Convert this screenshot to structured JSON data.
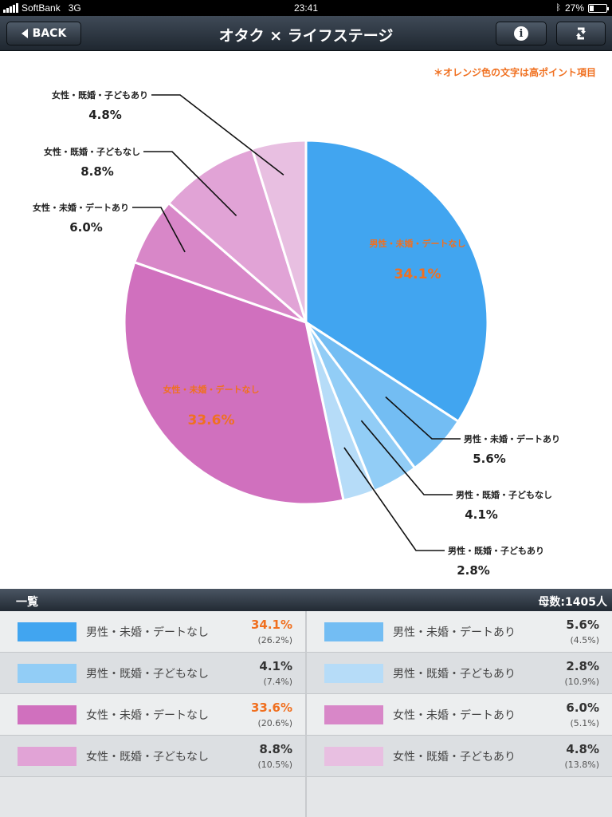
{
  "status_bar": {
    "carrier": "SoftBank",
    "network": "3G",
    "time": "23:41",
    "battery": "27%",
    "battery_fraction": 0.27,
    "bluetooth_icon": "bluetooth-icon"
  },
  "nav": {
    "back_label": "BACK",
    "title": "オタク × ライフステージ",
    "info_icon": "info-icon",
    "refresh_icon": "refresh-icon"
  },
  "chart": {
    "note": "＊オレンジ色の文字は高ポイント項目"
  },
  "chart_data": {
    "type": "pie",
    "start": "12 o'clock",
    "direction": "clockwise",
    "legend_placement": "below",
    "highlight_color": "#f07020",
    "slices": [
      {
        "label": "男性・未婚・デートなし",
        "value": 34.1,
        "display": "34.1%",
        "color": "#41a5f0",
        "highlight": true,
        "label_inside": true
      },
      {
        "label": "男性・未婚・デートあり",
        "value": 5.6,
        "display": "5.6%",
        "color": "#73bdf3",
        "highlight": false,
        "label_inside": false
      },
      {
        "label": "男性・既婚・子どもなし",
        "value": 4.1,
        "display": "4.1%",
        "color": "#92cdf6",
        "highlight": false,
        "label_inside": false
      },
      {
        "label": "男性・既婚・子どもあり",
        "value": 2.8,
        "display": "2.8%",
        "color": "#b6dcf8",
        "highlight": false,
        "label_inside": false
      },
      {
        "label": "女性・未婚・デートなし",
        "value": 33.6,
        "display": "33.6%",
        "color": "#d070be",
        "highlight": true,
        "label_inside": true
      },
      {
        "label": "女性・未婚・デートあり",
        "value": 6.0,
        "display": "6.0%",
        "color": "#d887c8",
        "highlight": false,
        "label_inside": false
      },
      {
        "label": "女性・既婚・子どもなし",
        "value": 8.8,
        "display": "8.8%",
        "color": "#e1a3d6",
        "highlight": false,
        "label_inside": false
      },
      {
        "label": "女性・既婚・子どもあり",
        "value": 4.8,
        "display": "4.8%",
        "color": "#e8bfe1",
        "highlight": false,
        "label_inside": false
      }
    ]
  },
  "summary": {
    "title": "一覧",
    "base_label": "母数:1405人",
    "rows": [
      {
        "label": "男性・未婚・デートなし",
        "value": "34.1%",
        "sub": "(26.2%)",
        "color": "#41a5f0",
        "highlight": true
      },
      {
        "label": "男性・未婚・デートあり",
        "value": "5.6%",
        "sub": "(4.5%)",
        "color": "#73bdf3",
        "highlight": false
      },
      {
        "label": "男性・既婚・子どもなし",
        "value": "4.1%",
        "sub": "(7.4%)",
        "color": "#92cdf6",
        "highlight": false
      },
      {
        "label": "男性・既婚・子どもあり",
        "value": "2.8%",
        "sub": "(10.9%)",
        "color": "#b6dcf8",
        "highlight": false
      },
      {
        "label": "女性・未婚・デートなし",
        "value": "33.6%",
        "sub": "(20.6%)",
        "color": "#d070be",
        "highlight": true
      },
      {
        "label": "女性・未婚・デートあり",
        "value": "6.0%",
        "sub": "(5.1%)",
        "color": "#d887c8",
        "highlight": false
      },
      {
        "label": "女性・既婚・子どもなし",
        "value": "8.8%",
        "sub": "(10.5%)",
        "color": "#e1a3d6",
        "highlight": false
      },
      {
        "label": "女性・既婚・子どもあり",
        "value": "4.8%",
        "sub": "(13.8%)",
        "color": "#e8bfe1",
        "highlight": false
      }
    ]
  }
}
